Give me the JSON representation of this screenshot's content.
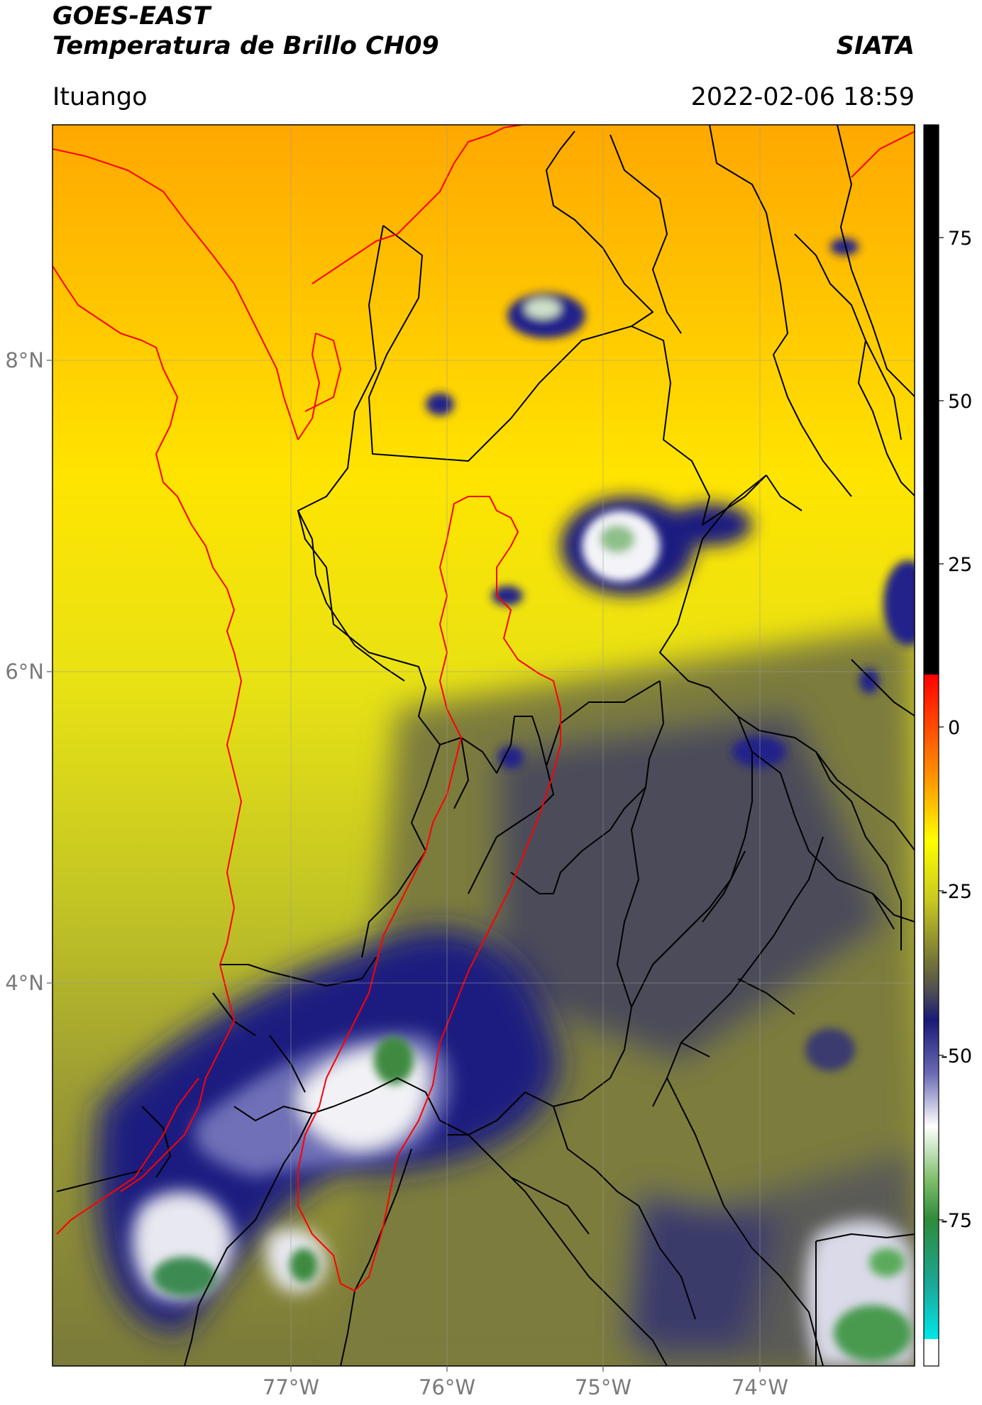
{
  "header": {
    "satellite": "GOES-EAST",
    "product": "Temperatura de Brillo CH09",
    "institution": "SIATA",
    "location": "Ituango",
    "datetime": "2022-02-06 18:59"
  },
  "map": {
    "lat_labels": [
      "8°N",
      "6°N",
      "4°N"
    ],
    "lon_labels": [
      "77°W",
      "76°W",
      "75°W",
      "74°W"
    ]
  },
  "colorbar": {
    "tick_labels": [
      "75",
      "50",
      "25",
      "0",
      "-25",
      "-50",
      "-75"
    ],
    "colors": {
      "high_black": "#000000",
      "red": "#ff0000",
      "orange": "#ff9900",
      "yellow": "#ffff00",
      "olive": "#8c8c28",
      "gray": "#50505a",
      "navy": "#1e1e78",
      "white": "#ffffff",
      "green": "#2e8b3a",
      "cyan": "#00e0e0"
    }
  },
  "colors": {
    "department_border": "#000000",
    "basin_outline": "#ff0000",
    "gridline": "#9a9a9a"
  }
}
